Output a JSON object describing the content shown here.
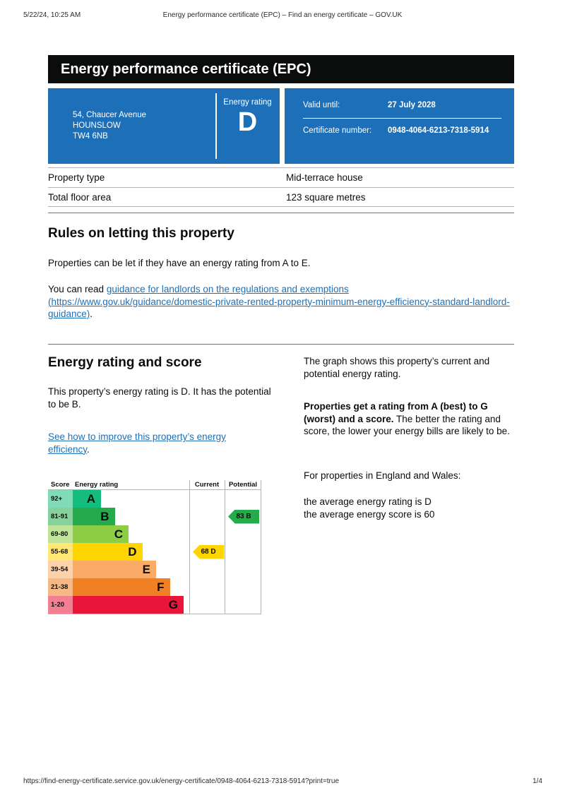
{
  "print_header": {
    "datetime": "5/22/24, 10:25 AM",
    "title": "Energy performance certificate (EPC) – Find an energy certificate – GOV.UK"
  },
  "print_footer": {
    "url": "https://find-energy-certificate.service.gov.uk/energy-certificate/0948-4064-6213-7318-5914?print=true",
    "page": "1/4"
  },
  "banner": {
    "title": "Energy performance certificate (EPC)",
    "bg": "#0b0c0c"
  },
  "summary": {
    "accent": "#1d70b8",
    "address_lines": [
      "54, Chaucer Avenue",
      "HOUNSLOW",
      "TW4 6NB"
    ],
    "energy_rating_label": "Energy rating",
    "energy_rating": "D",
    "valid_until_label": "Valid until:",
    "valid_until": "27 July 2028",
    "certificate_number_label": "Certificate number:",
    "certificate_number": "0948-4064-6213-7318-5914"
  },
  "property_details": {
    "rows": [
      {
        "label": "Property type",
        "value": "Mid-terrace house"
      },
      {
        "label": "Total floor area",
        "value": "123 square metres"
      }
    ]
  },
  "rules": {
    "heading": "Rules on letting this property",
    "para1": "Properties can be let if they have an energy rating from A to E.",
    "para2_prefix": "You can read ",
    "link_text": "guidance for landlords on the regulations and exemptions (https://www.gov.uk/guidance/domestic-private-rented-property-minimum-energy-efficiency-standard-landlord-guidance)",
    "para2_suffix": "."
  },
  "rating_section": {
    "heading": "Energy rating and score",
    "para1": "This property’s energy rating is D. It has the potential to be B.",
    "improve_link_text": "See how to improve this property’s energy efficiency",
    "improve_link_suffix": ".",
    "graph_para": "The graph shows this property’s current and potential energy rating.",
    "bold_lead": "Properties get a rating from A (best) to G (worst) and a score.",
    "bold_rest": " The better the rating and score, the lower your energy bills are likely to be.",
    "england_wales": "For properties in England and Wales:",
    "avg_rating": "the average energy rating is D",
    "avg_score": "the average energy score is 60"
  },
  "chart_data": {
    "type": "bar",
    "title": "EPC energy rating bands with current and potential scores",
    "columns": [
      "Score",
      "Energy rating",
      "Current",
      "Potential"
    ],
    "bands": [
      {
        "score_range": "92+",
        "letter": "A",
        "color": "#15bd7d"
      },
      {
        "score_range": "81-91",
        "letter": "B",
        "color": "#25ab4c"
      },
      {
        "score_range": "69-80",
        "letter": "C",
        "color": "#8dce46"
      },
      {
        "score_range": "55-68",
        "letter": "D",
        "color": "#ffd500"
      },
      {
        "score_range": "39-54",
        "letter": "E",
        "color": "#fbab65"
      },
      {
        "score_range": "21-38",
        "letter": "F",
        "color": "#ef8023"
      },
      {
        "score_range": "1-20",
        "letter": "G",
        "color": "#e9153b"
      }
    ],
    "current": {
      "score": 68,
      "band": "D",
      "label": "68 D",
      "color": "#ffd500"
    },
    "potential": {
      "score": 83,
      "band": "B",
      "label": "83 B",
      "color": "#25ab4c"
    }
  }
}
